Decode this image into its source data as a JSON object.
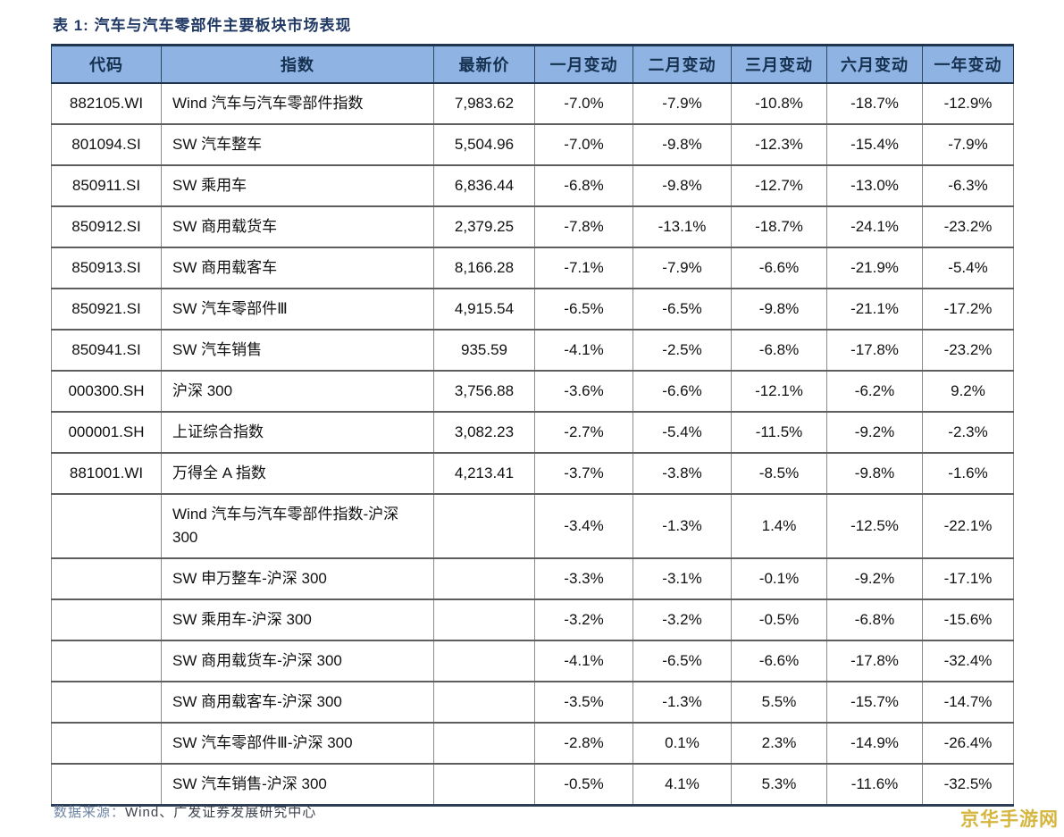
{
  "title": "表 1:  汽车与汽车零部件主要板块市场表现",
  "table": {
    "headers": [
      "代码",
      "指数",
      "最新价",
      "一月变动",
      "二月变动",
      "三月变动",
      "六月变动",
      "一年变动"
    ],
    "rows": [
      [
        "882105.WI",
        "Wind 汽车与汽车零部件指数",
        "7,983.62",
        "-7.0%",
        "-7.9%",
        "-10.8%",
        "-18.7%",
        "-12.9%"
      ],
      [
        "801094.SI",
        "SW 汽车整车",
        "5,504.96",
        "-7.0%",
        "-9.8%",
        "-12.3%",
        "-15.4%",
        "-7.9%"
      ],
      [
        "850911.SI",
        "SW 乘用车",
        "6,836.44",
        "-6.8%",
        "-9.8%",
        "-12.7%",
        "-13.0%",
        "-6.3%"
      ],
      [
        "850912.SI",
        "SW 商用载货车",
        "2,379.25",
        "-7.8%",
        "-13.1%",
        "-18.7%",
        "-24.1%",
        "-23.2%"
      ],
      [
        "850913.SI",
        "SW 商用载客车",
        "8,166.28",
        "-7.1%",
        "-7.9%",
        "-6.6%",
        "-21.9%",
        "-5.4%"
      ],
      [
        "850921.SI",
        "SW 汽车零部件Ⅲ",
        "4,915.54",
        "-6.5%",
        "-6.5%",
        "-9.8%",
        "-21.1%",
        "-17.2%"
      ],
      [
        "850941.SI",
        "SW 汽车销售",
        "935.59",
        "-4.1%",
        "-2.5%",
        "-6.8%",
        "-17.8%",
        "-23.2%"
      ],
      [
        "000300.SH",
        "沪深 300",
        "3,756.88",
        "-3.6%",
        "-6.6%",
        "-12.1%",
        "-6.2%",
        "9.2%"
      ],
      [
        "000001.SH",
        "上证综合指数",
        "3,082.23",
        "-2.7%",
        "-5.4%",
        "-11.5%",
        "-9.2%",
        "-2.3%"
      ],
      [
        "881001.WI",
        "万得全 A 指数",
        "4,213.41",
        "-3.7%",
        "-3.8%",
        "-8.5%",
        "-9.8%",
        "-1.6%"
      ],
      [
        "",
        "Wind 汽车与汽车零部件指数-沪深 300",
        "",
        "-3.4%",
        "-1.3%",
        "1.4%",
        "-12.5%",
        "-22.1%"
      ],
      [
        "",
        "SW 申万整车-沪深 300",
        "",
        "-3.3%",
        "-3.1%",
        "-0.1%",
        "-9.2%",
        "-17.1%"
      ],
      [
        "",
        "SW 乘用车-沪深 300",
        "",
        "-3.2%",
        "-3.2%",
        "-0.5%",
        "-6.8%",
        "-15.6%"
      ],
      [
        "",
        "SW 商用载货车-沪深 300",
        "",
        "-4.1%",
        "-6.5%",
        "-6.6%",
        "-17.8%",
        "-32.4%"
      ],
      [
        "",
        "SW 商用载客车-沪深 300",
        "",
        "-3.5%",
        "-1.3%",
        "5.5%",
        "-15.7%",
        "-14.7%"
      ],
      [
        "",
        "SW 汽车零部件Ⅲ-沪深 300",
        "",
        "-2.8%",
        "0.1%",
        "2.3%",
        "-14.9%",
        "-26.4%"
      ],
      [
        "",
        "SW 汽车销售-沪深 300",
        "",
        "-0.5%",
        "4.1%",
        "5.3%",
        "-11.6%",
        "-32.5%"
      ]
    ]
  },
  "footer": {
    "source_label": "数据来源：",
    "source_text": "Wind、广发证券发展研究中心"
  },
  "watermark": "京华手游网",
  "colors": {
    "header_bg": "#8FB4E3",
    "title": "#1F3864",
    "border_dark": "#1F3550",
    "watermark": "#D5B63E"
  }
}
